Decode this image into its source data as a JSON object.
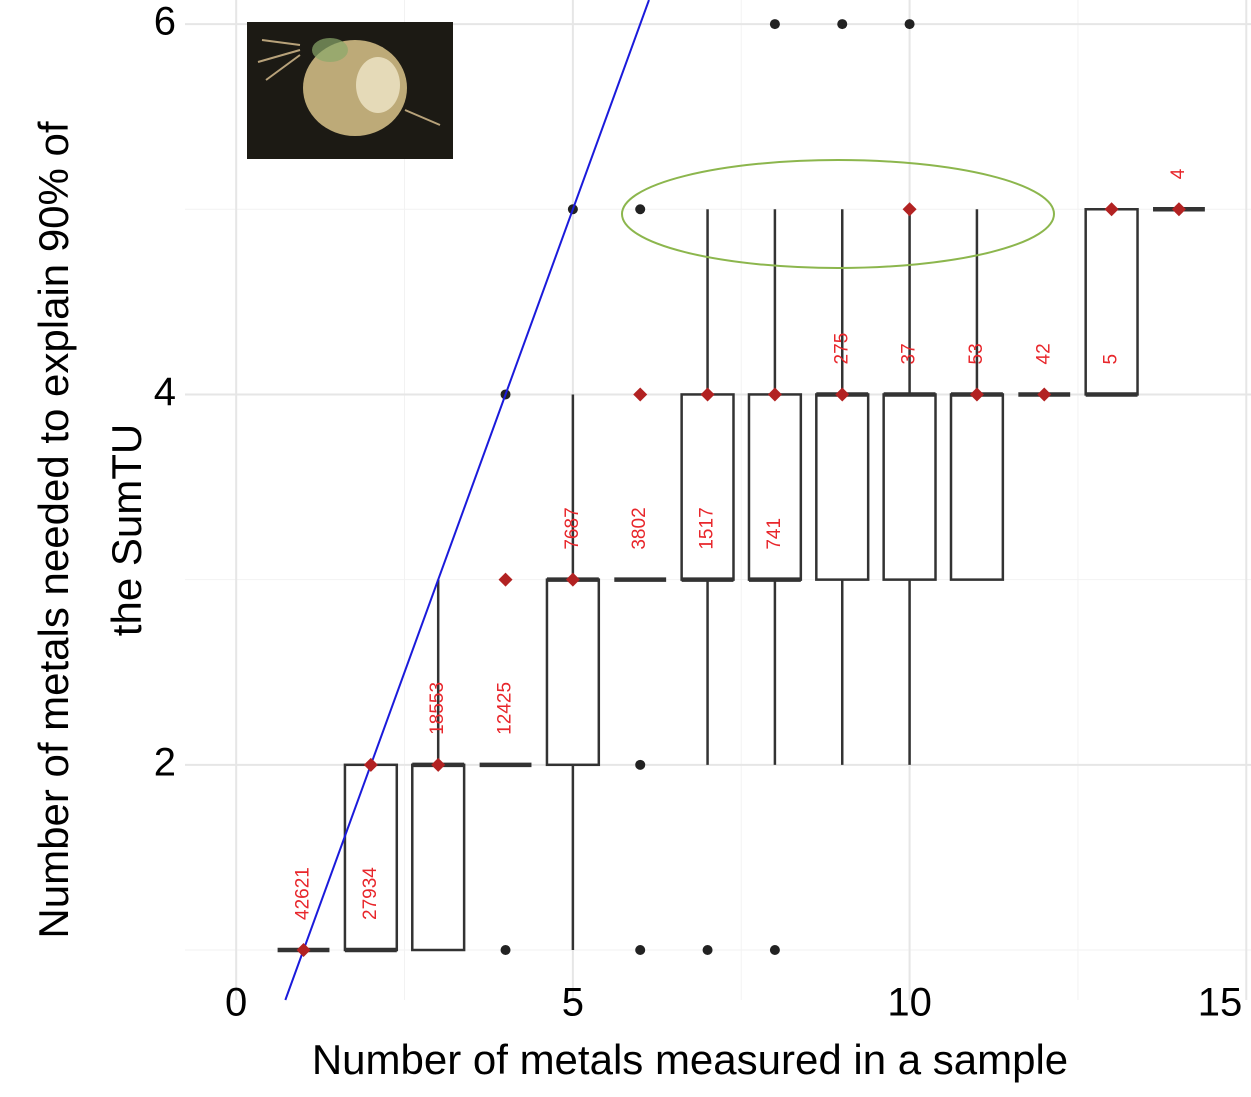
{
  "chart_data": {
    "type": "box",
    "x_label": "Number of metals measured in a sample",
    "y_label": [
      "Number of metals needed to explain 90% of",
      "the SumTU"
    ],
    "xlim": [
      -0.76,
      15.07
    ],
    "ylim": [
      0.73,
      6.13
    ],
    "xticks": [
      0,
      5,
      10,
      15
    ],
    "yticks": [
      2,
      4,
      6
    ],
    "xminor": [
      2.5,
      7.5,
      12.5
    ],
    "yminor": [
      1,
      3,
      5
    ],
    "grid": true,
    "box_color": "#333333",
    "mean_color": "#b22222",
    "label_color": "#e8262b",
    "reference_line": {
      "slope": 1,
      "intercept": 0,
      "color": "#1a1adb"
    },
    "boxes": [
      {
        "x": 1,
        "min": 1,
        "q1": 1,
        "median": 1,
        "q3": 1,
        "max": 1,
        "mean": 1,
        "outliers": [],
        "n": 42621
      },
      {
        "x": 2,
        "min": 1,
        "q1": 1,
        "median": 1,
        "q3": 2,
        "max": 2,
        "mean": 2,
        "outliers": [],
        "n": 27934
      },
      {
        "x": 3,
        "min": 1,
        "q1": 1,
        "median": 2,
        "q3": 2,
        "max": 3,
        "mean": 2,
        "outliers": [],
        "n": 18553
      },
      {
        "x": 4,
        "min": 2,
        "q1": 2,
        "median": 2,
        "q3": 2,
        "max": 2,
        "mean": 3,
        "outliers": [
          1,
          4
        ],
        "n": 12425
      },
      {
        "x": 5,
        "min": 1,
        "q1": 2,
        "median": 3,
        "q3": 3,
        "max": 4,
        "mean": 3,
        "outliers": [
          5
        ],
        "n": 7687
      },
      {
        "x": 6,
        "min": 3,
        "q1": 3,
        "median": 3,
        "q3": 3,
        "max": 3,
        "mean": 4,
        "outliers": [
          1,
          2,
          5
        ],
        "n": 3802
      },
      {
        "x": 7,
        "min": 2,
        "q1": 3,
        "median": 3,
        "q3": 4,
        "max": 5,
        "mean": 4,
        "outliers": [
          1
        ],
        "n": 1517
      },
      {
        "x": 8,
        "min": 2,
        "q1": 3,
        "median": 3,
        "q3": 4,
        "max": 5,
        "mean": 4,
        "outliers": [
          1,
          6
        ],
        "n": 741
      },
      {
        "x": 9,
        "min": 2,
        "q1": 3,
        "median": 4,
        "q3": 4,
        "max": 5,
        "mean": 4,
        "outliers": [
          6
        ],
        "n": 275
      },
      {
        "x": 10,
        "min": 2,
        "q1": 3,
        "median": 4,
        "q3": 4,
        "max": 5,
        "mean": 5,
        "outliers": [
          6
        ],
        "n": 37
      },
      {
        "x": 11,
        "min": 3,
        "q1": 3,
        "median": 4,
        "q3": 4,
        "max": 5,
        "mean": 4,
        "outliers": [],
        "n": 53
      },
      {
        "x": 12,
        "min": 4,
        "q1": 4,
        "median": 4,
        "q3": 4,
        "max": 4,
        "mean": 4,
        "outliers": [],
        "n": 42
      },
      {
        "x": 13,
        "min": 4,
        "q1": 4,
        "median": 4,
        "q3": 5,
        "max": 5,
        "mean": 5,
        "outliers": [],
        "n": 5
      },
      {
        "x": 14,
        "min": 5,
        "q1": 5,
        "median": 5,
        "q3": 5,
        "max": 5,
        "mean": 5,
        "outliers": [],
        "n": 4
      }
    ]
  }
}
